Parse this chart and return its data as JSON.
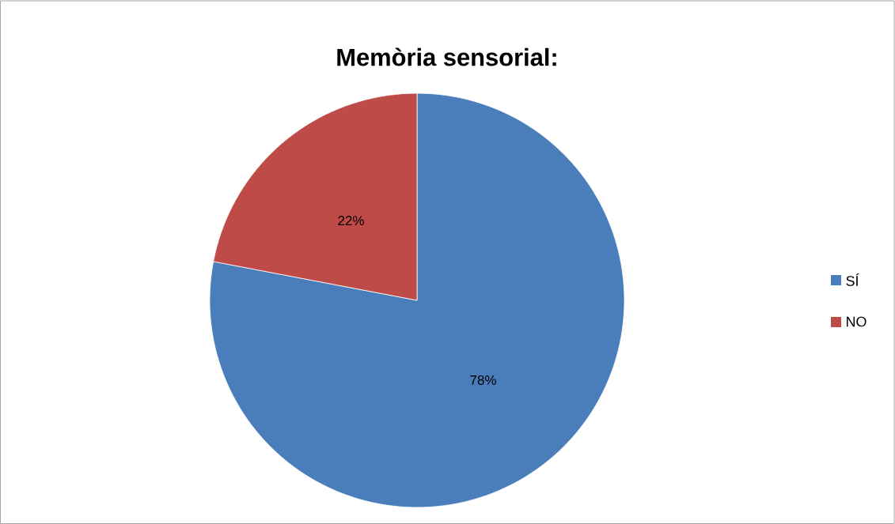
{
  "chart_data": {
    "type": "pie",
    "title": "Memòria sensorial:",
    "categories": [
      "SÍ",
      "NO"
    ],
    "values": [
      78,
      22
    ],
    "value_labels": [
      "78%",
      "22%"
    ],
    "colors": [
      "#4a7ebb",
      "#be4b48"
    ],
    "legend": "right"
  }
}
